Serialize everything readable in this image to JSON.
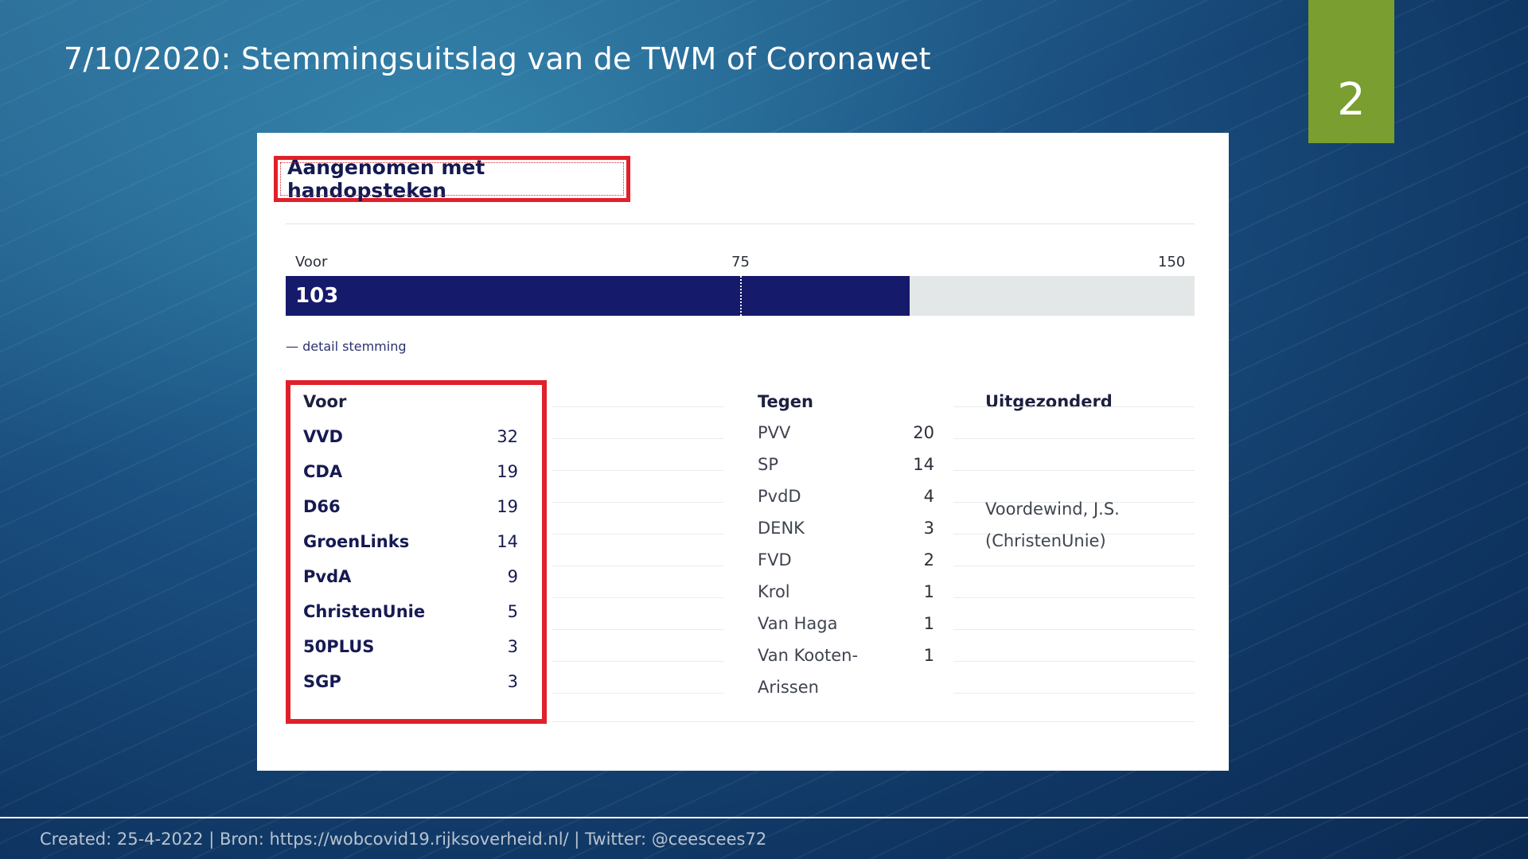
{
  "slide": {
    "title": "7/10/2020: Stemmingsuitslag van de TWM of Coronawet",
    "page_number": "2",
    "footer": "Created: 25-4-2022 | Bron: https://wobcovid19.rijksoverheid.nl/ |  Twitter: @ceescees72"
  },
  "result": {
    "title": "Aangenomen met handopsteken",
    "bar": {
      "label": "Voor",
      "mid_label": "75",
      "max_label": "150",
      "value": 103,
      "value_label": "103",
      "max": 150,
      "mid": 75
    },
    "detail_link": "— detail stemming"
  },
  "voor": {
    "heading": "Voor",
    "rows": [
      {
        "party": "VVD",
        "count": "32"
      },
      {
        "party": "CDA",
        "count": "19"
      },
      {
        "party": "D66",
        "count": "19"
      },
      {
        "party": "GroenLinks",
        "count": "14"
      },
      {
        "party": "PvdA",
        "count": "9"
      },
      {
        "party": "ChristenUnie",
        "count": "5"
      },
      {
        "party": "50PLUS",
        "count": "3"
      },
      {
        "party": "SGP",
        "count": "3"
      }
    ]
  },
  "tegen": {
    "heading": "Tegen",
    "rows": [
      {
        "party": "PVV",
        "count": "20"
      },
      {
        "party": "SP",
        "count": "14"
      },
      {
        "party": "PvdD",
        "count": "4"
      },
      {
        "party": "DENK",
        "count": "3"
      },
      {
        "party": "FVD",
        "count": "2"
      },
      {
        "party": "Krol",
        "count": "1"
      },
      {
        "party": "Van Haga",
        "count": "1"
      },
      {
        "party": "Van Kooten-",
        "count": "1"
      },
      {
        "party": "Arissen",
        "count": ""
      }
    ]
  },
  "uitgezonderd": {
    "heading": "Uitgezonderd",
    "name": "Voordewind, J.S.",
    "party": "(ChristenUnie)"
  },
  "colors": {
    "bar_fill": "#161a6b",
    "highlight": "#e0202a",
    "page_tab": "#7a9e2f"
  }
}
